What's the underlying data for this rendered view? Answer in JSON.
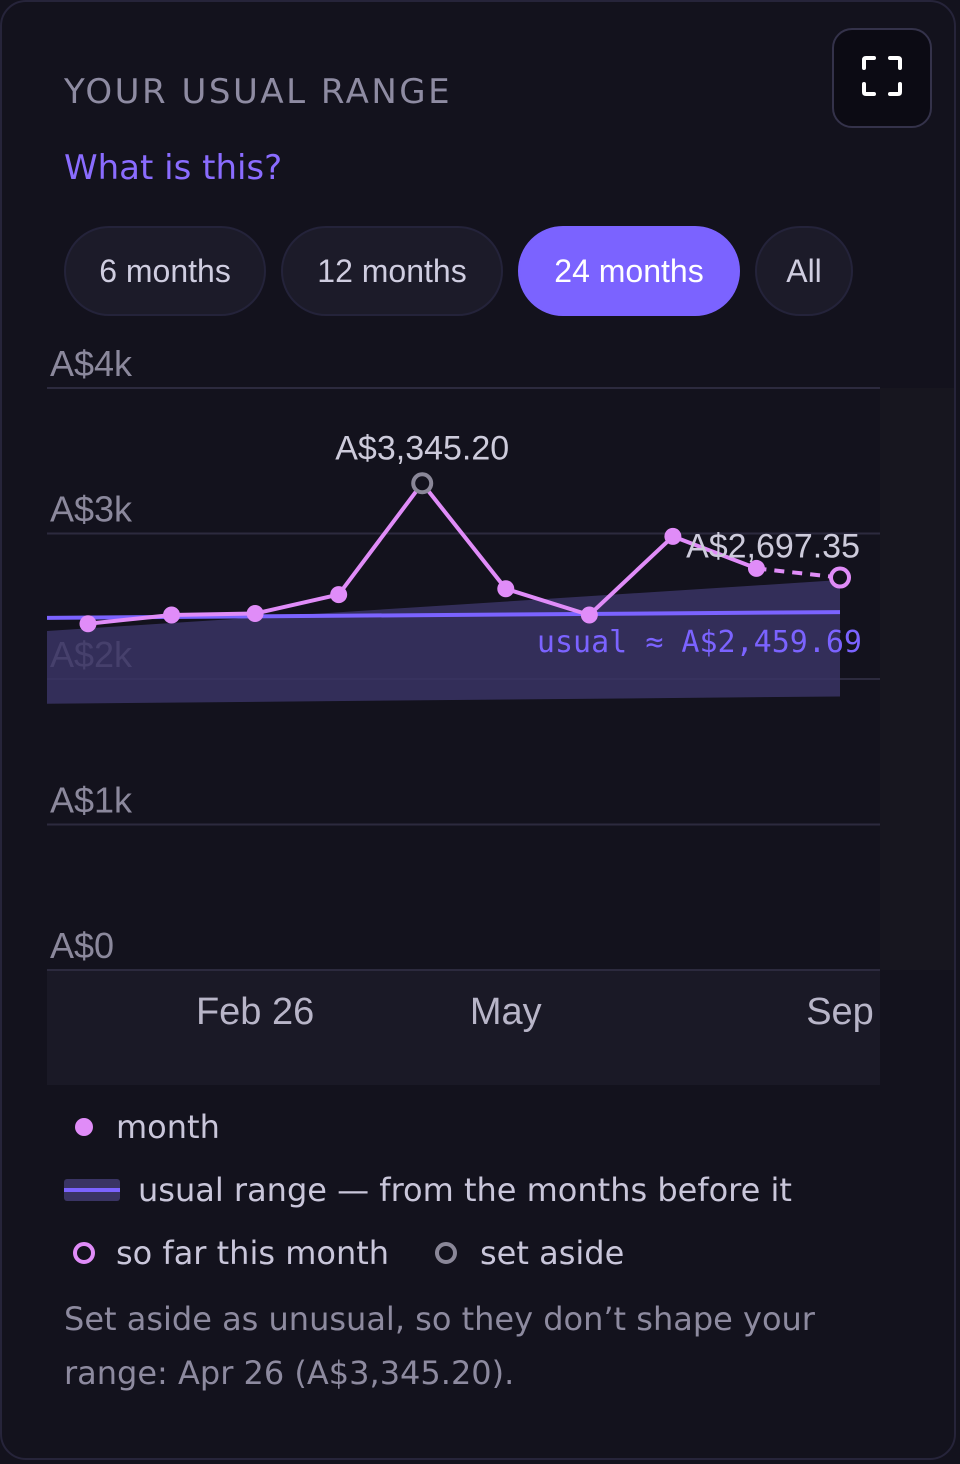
{
  "header": {
    "title": "YOUR USUAL RANGE",
    "help_link": "What is this?"
  },
  "tabs": [
    {
      "label": "6 months",
      "active": false
    },
    {
      "label": "12 months",
      "active": false
    },
    {
      "label": "24 months",
      "active": true
    },
    {
      "label": "All",
      "active": false
    }
  ],
  "icons": {
    "expand": "expand-icon"
  },
  "colors": {
    "accent": "#7b63ff",
    "month_line": "#e08cf8",
    "band": "#3a3464",
    "set_aside": "#8a8798"
  },
  "chart_data": {
    "type": "line",
    "y_ticks": [
      {
        "value": 4000,
        "label": "A$4k"
      },
      {
        "value": 3000,
        "label": "A$3k"
      },
      {
        "value": 2000,
        "label": "A$2k"
      },
      {
        "value": 1000,
        "label": "A$1k"
      },
      {
        "value": 0,
        "label": "A$0"
      }
    ],
    "ylim": [
      0,
      4000
    ],
    "grid": true,
    "x_index_range": [
      0,
      9
    ],
    "x_ticks": [
      {
        "index": 2,
        "label": "Feb 26"
      },
      {
        "index": 5,
        "label": "May"
      },
      {
        "index": 9,
        "label": "Sep"
      }
    ],
    "series": [
      {
        "kind": "month",
        "points": [
          {
            "index": 0,
            "value": 2380
          },
          {
            "index": 1,
            "value": 2440
          },
          {
            "index": 2,
            "value": 2450
          },
          {
            "index": 3,
            "value": 2580
          },
          {
            "index": 4,
            "value": 3345.2,
            "set_aside": true,
            "label": "A$3,345.20"
          },
          {
            "index": 5,
            "value": 2620
          },
          {
            "index": 6,
            "value": 2440
          },
          {
            "index": 7,
            "value": 2980
          },
          {
            "index": 8,
            "value": 2760
          },
          {
            "index": 9,
            "value": 2697.35,
            "partial": true,
            "label": "A$2,697.35"
          }
        ]
      }
    ],
    "usual_range": {
      "band": [
        {
          "index": 0,
          "low": 1830,
          "high": 2330
        },
        {
          "index": 9,
          "low": 1880,
          "high": 2680
        }
      ],
      "center": [
        {
          "index": 0,
          "value": 2420
        },
        {
          "index": 9,
          "value": 2460
        }
      ],
      "label": "usual ≈ A$2,459.69"
    }
  },
  "legend": {
    "month": "month",
    "usual_range": "usual range — from the months before it",
    "so_far": "so far this month",
    "set_aside": "set aside"
  },
  "note": "Set aside as unusual, so they don’t shape your range: Apr 26 (A$3,345.20)."
}
